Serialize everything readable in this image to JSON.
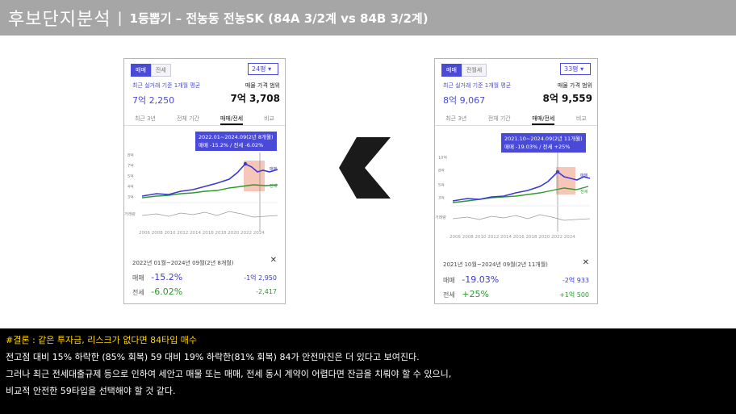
{
  "header": {
    "title": "후보단지분석",
    "separator": "|",
    "subtitle": "1등뽑기 – 전농동 전농SK (84A 3/2계 vs 84B 3/2계)"
  },
  "arrow": {
    "icon": "chevron-left-icon",
    "color": "#1a1a1a"
  },
  "cards": [
    {
      "tabs": [
        "매매",
        "전세"
      ],
      "size_select": "24평",
      "avg_label": "최근 실거래 기준 1개월 평균",
      "avg_value": "7억 2,250",
      "ask_label": "매물 가격 범위",
      "ask_value": "7억 3,708",
      "period_tabs": [
        "최근 3년",
        "전체 기간",
        "매매/전세",
        "비교"
      ],
      "active_period": 2,
      "tooltip_line1": "2022.01~2024.09(2년 8개월)",
      "tooltip_line2": "매매 -15.2% / 전세 -6.02%",
      "y_ticks": [
        "8억",
        "7억",
        "5억",
        "4억",
        "3억"
      ],
      "volume_label": "거래량",
      "x_axis": "2006 2008 2010 2012 2014 2016 2018 2020 2022 2024",
      "line_labels": [
        "매매",
        "전세"
      ],
      "range_text": "2022년 01월~2024년 09월(2년 8개월)",
      "sale_label": "매매",
      "sale_pct": "-15.2%",
      "sale_diff": "-1억 2,950",
      "jeonse_label": "전세",
      "jeonse_pct": "-6.02%",
      "jeonse_diff": "-2,417",
      "close": "✕"
    },
    {
      "tabs": [
        "매매",
        "전월세"
      ],
      "size_select": "33평",
      "avg_label": "최근 실거래 기준 1개월 평균",
      "avg_value": "8억 9,067",
      "ask_label": "매물 가격 범위",
      "ask_value": "8억 9,559",
      "period_tabs": [
        "최근 3년",
        "전체 기간",
        "매매/전세",
        "비교"
      ],
      "active_period": 2,
      "tooltip_line1": "2021.10~2024.09(2년 11개월)",
      "tooltip_line2": "매매 -19.03% / 전세 +25%",
      "y_ticks": [
        "10억",
        "8억",
        "5억",
        "3억"
      ],
      "volume_label": "거래량",
      "x_axis": "2006 2008 2010 2012 2014 2016 2018 2020 2022 2024",
      "line_labels": [
        "매매",
        "전세"
      ],
      "range_text": "2021년 10월~2024년 09월(2년 11개월)",
      "sale_label": "매매",
      "sale_pct": "-19.03%",
      "sale_diff": "-2억 933",
      "jeonse_label": "전세",
      "jeonse_pct": "+25%",
      "jeonse_diff": "+1억 500",
      "close": "✕"
    }
  ],
  "conclusion": {
    "line1": "#결론 : 같은 투자금, 리스크가 없다면 84타입 매수",
    "line2": "전고점 대비 15% 하락한 (85% 회복) 59 대비 19% 하락한(81% 회복) 84가 안전마진은 더 있다고 보여진다.",
    "line3": "그러나 최근 전세대출규제 등으로 인하여 세안고 매물 또는 매매, 전세 동시 계약이 어렵다면 잔금을 치뤄야 할 수 있으니,",
    "line4": "비교적 안전한 59타입을 선택해야 할 것 같다."
  },
  "colors": {
    "sale": "#3a3ad0",
    "jeonse": "#2e9a2e",
    "highlight": "#f4b9a6",
    "accent": "#4a4ad8"
  }
}
